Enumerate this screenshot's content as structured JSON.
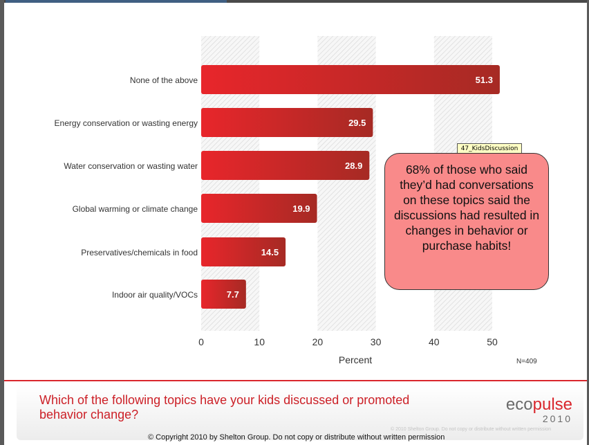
{
  "chart_data": {
    "type": "bar",
    "orientation": "horizontal",
    "categories": [
      "None of the above",
      "Energy conservation or wasting energy",
      "Water conservation or wasting water",
      "Global warming or climate change",
      "Preservatives/chemicals in food",
      "Indoor air quality/VOCs"
    ],
    "values": [
      51.3,
      29.5,
      28.9,
      19.9,
      14.5,
      7.7
    ],
    "value_labels": [
      "51.3",
      "29.5",
      "28.9",
      "19.9",
      "14.5",
      "7.7"
    ],
    "xlabel": "Percent",
    "xticks": [
      "0",
      "10",
      "20",
      "30",
      "40",
      "50"
    ],
    "xlim": [
      0,
      50
    ],
    "grid": "hatched alternating column bands",
    "note": "N=409",
    "bar_color": "#d42027",
    "bar_color_dark": "#a62a24"
  },
  "callout": {
    "tag": "47_KidsDiscussion",
    "text": "68% of those who said they’d had conversations on these topics said the discussions had resulted in changes in behavior or purchase habits!"
  },
  "footer": {
    "question": "Which of the following topics have your kids discussed or promoted behavior change?",
    "logo_part1": "eco",
    "logo_part2": "pulse",
    "logo_year": "2010",
    "faint_notice": "© 2010 Shelton Group. Do not copy or distribute without written permission",
    "copyright": "© Copyright 2010 by Shelton Group. Do not copy or distribute without written permission"
  },
  "colors": {
    "accent_red": "#d9262c",
    "callout_fill": "#f98a8a",
    "tag_fill": "#ffffc4"
  }
}
